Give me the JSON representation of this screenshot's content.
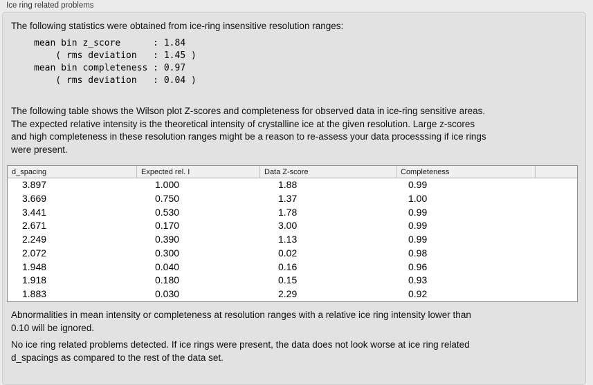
{
  "panel": {
    "title": "Ice ring related problems"
  },
  "stats": {
    "intro": "The following statistics were obtained from ice-ring insensitive resolution ranges:",
    "block": "mean bin z_score      : 1.84\n    ( rms deviation   : 1.45 )\nmean bin completeness : 0.97\n    ( rms deviation   : 0.04 )"
  },
  "table_intro": "The following table shows the Wilson plot Z-scores and completeness for observed data in ice-ring sensitive areas.\nThe expected relative intensity is the theoretical intensity of crystalline ice at the given resolution. Large z-scores\nand high completeness in these resolution ranges might be a reason to re-assess your data processsing if ice rings\nwere present.",
  "table": {
    "headers": [
      "d_spacing",
      "Expected rel. I",
      "Data Z-score",
      "Completeness",
      ""
    ],
    "rows": [
      [
        "3.897",
        "1.000",
        "1.88",
        "0.99"
      ],
      [
        "3.669",
        "0.750",
        "1.37",
        "1.00"
      ],
      [
        "3.441",
        "0.530",
        "1.78",
        "0.99"
      ],
      [
        "2.671",
        "0.170",
        "3.00",
        "0.99"
      ],
      [
        "2.249",
        "0.390",
        "1.13",
        "0.99"
      ],
      [
        "2.072",
        "0.300",
        "0.02",
        "0.98"
      ],
      [
        "1.948",
        "0.040",
        "0.16",
        "0.96"
      ],
      [
        "1.918",
        "0.180",
        "0.15",
        "0.93"
      ],
      [
        "1.883",
        "0.030",
        "2.29",
        "0.92"
      ]
    ]
  },
  "notes": {
    "ignore_note": "Abnormalities in mean intensity or completeness at resolution ranges with a relative ice ring intensity lower than\n0.10 will be ignored.",
    "conclusion": "No ice ring related problems detected. If ice rings were present, the data does not look worse at ice ring related\nd_spacings as compared to the rest of the data set."
  }
}
